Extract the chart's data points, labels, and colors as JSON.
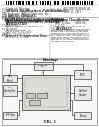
{
  "background_color": "#ffffff",
  "barcode_color": "#000000",
  "text_dark": "#111111",
  "text_medium": "#333333",
  "text_light": "#666666",
  "line_color": "#888888",
  "diagram_line": "#444444",
  "box_fill": "#e8e8e8",
  "box_edge": "#555555",
  "chamber_fill": "#ddddd8",
  "header1": "United States",
  "header2": "Patent Application Publication",
  "pub_no": "US 2011/0308041 A1",
  "pub_date": "Dec. 15, 2011",
  "fig_label": "FIG. 1"
}
